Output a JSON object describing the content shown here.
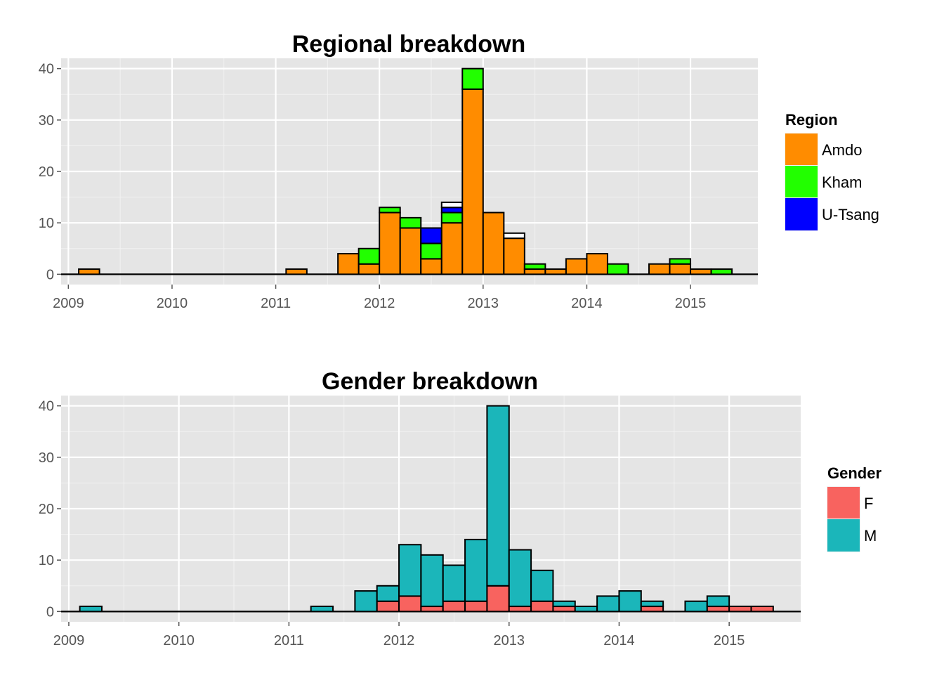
{
  "chart_data": [
    {
      "type": "bar",
      "stacked": true,
      "title": "Regional breakdown",
      "xlabel": "",
      "ylabel": "",
      "xlim": [
        2008.93,
        2015.65
      ],
      "ylim": [
        -2,
        42
      ],
      "x_ticks": [
        2009,
        2010,
        2011,
        2012,
        2013,
        2014,
        2015
      ],
      "y_ticks": [
        0,
        10,
        20,
        30,
        40
      ],
      "x_tick_labels": [
        "2009",
        "2010",
        "2011",
        "2012",
        "2013",
        "2014",
        "2015"
      ],
      "y_tick_labels": [
        "0",
        "10",
        "20",
        "30",
        "40"
      ],
      "grid": true,
      "legend": {
        "title": "Region",
        "position": "right",
        "items": [
          {
            "label": "Amdo",
            "color": "#FF8C00"
          },
          {
            "label": "Kham",
            "color": "#22FF00"
          },
          {
            "label": "U-Tsang",
            "color": "#0000FF"
          }
        ]
      },
      "bin_width": 0.2,
      "bins": [
        {
          "x": 2009.2,
          "segments": [
            {
              "series": "Amdo",
              "value": 1
            }
          ]
        },
        {
          "x": 2011.2,
          "segments": [
            {
              "series": "Amdo",
              "value": 1
            }
          ]
        },
        {
          "x": 2011.7,
          "segments": [
            {
              "series": "Amdo",
              "value": 4
            }
          ]
        },
        {
          "x": 2011.9,
          "segments": [
            {
              "series": "Amdo",
              "value": 2
            },
            {
              "series": "Kham",
              "value": 3
            }
          ]
        },
        {
          "x": 2012.1,
          "segments": [
            {
              "series": "Amdo",
              "value": 12
            },
            {
              "series": "Kham",
              "value": 1
            }
          ]
        },
        {
          "x": 2012.3,
          "segments": [
            {
              "series": "Amdo",
              "value": 9
            },
            {
              "series": "Kham",
              "value": 2
            }
          ]
        },
        {
          "x": 2012.5,
          "segments": [
            {
              "series": "Amdo",
              "value": 3
            },
            {
              "series": "Kham",
              "value": 3
            },
            {
              "series": "U-Tsang",
              "value": 3
            }
          ]
        },
        {
          "x": 2012.7,
          "segments": [
            {
              "series": "Amdo",
              "value": 10
            },
            {
              "series": "Kham",
              "value": 2
            },
            {
              "series": "U-Tsang",
              "value": 1
            },
            {
              "series": "NA",
              "value": 1
            }
          ]
        },
        {
          "x": 2012.9,
          "segments": [
            {
              "series": "Amdo",
              "value": 36
            },
            {
              "series": "Kham",
              "value": 4
            }
          ]
        },
        {
          "x": 2013.1,
          "segments": [
            {
              "series": "Amdo",
              "value": 12
            }
          ]
        },
        {
          "x": 2013.3,
          "segments": [
            {
              "series": "Amdo",
              "value": 7
            },
            {
              "series": "NA",
              "value": 1
            }
          ]
        },
        {
          "x": 2013.5,
          "segments": [
            {
              "series": "Amdo",
              "value": 1
            },
            {
              "series": "Kham",
              "value": 1
            }
          ]
        },
        {
          "x": 2013.7,
          "segments": [
            {
              "series": "Amdo",
              "value": 1
            }
          ]
        },
        {
          "x": 2013.9,
          "segments": [
            {
              "series": "Amdo",
              "value": 3
            }
          ]
        },
        {
          "x": 2014.1,
          "segments": [
            {
              "series": "Amdo",
              "value": 4
            }
          ]
        },
        {
          "x": 2014.3,
          "segments": [
            {
              "series": "Kham",
              "value": 2
            }
          ]
        },
        {
          "x": 2014.7,
          "segments": [
            {
              "series": "Amdo",
              "value": 2
            }
          ]
        },
        {
          "x": 2014.9,
          "segments": [
            {
              "series": "Amdo",
              "value": 2
            },
            {
              "series": "Kham",
              "value": 1
            }
          ]
        },
        {
          "x": 2015.1,
          "segments": [
            {
              "series": "Amdo",
              "value": 1
            }
          ]
        },
        {
          "x": 2015.3,
          "segments": [
            {
              "series": "Kham",
              "value": 1
            }
          ]
        }
      ]
    },
    {
      "type": "bar",
      "stacked": true,
      "title": "Gender breakdown",
      "xlabel": "",
      "ylabel": "",
      "xlim": [
        2008.93,
        2015.65
      ],
      "ylim": [
        -2,
        42
      ],
      "x_ticks": [
        2009,
        2010,
        2011,
        2012,
        2013,
        2014,
        2015
      ],
      "y_ticks": [
        0,
        10,
        20,
        30,
        40
      ],
      "x_tick_labels": [
        "2009",
        "2010",
        "2011",
        "2012",
        "2013",
        "2014",
        "2015"
      ],
      "y_tick_labels": [
        "0",
        "10",
        "20",
        "30",
        "40"
      ],
      "grid": true,
      "legend": {
        "title": "Gender",
        "position": "right",
        "items": [
          {
            "label": "F",
            "color": "#F8635F"
          },
          {
            "label": "M",
            "color": "#1BB6BA"
          }
        ]
      },
      "bin_width": 0.2,
      "bins": [
        {
          "x": 2009.2,
          "segments": [
            {
              "series": "M",
              "value": 1
            }
          ]
        },
        {
          "x": 2011.3,
          "segments": [
            {
              "series": "M",
              "value": 1
            }
          ]
        },
        {
          "x": 2011.7,
          "segments": [
            {
              "series": "M",
              "value": 4
            }
          ]
        },
        {
          "x": 2011.9,
          "segments": [
            {
              "series": "F",
              "value": 2
            },
            {
              "series": "M",
              "value": 3
            }
          ]
        },
        {
          "x": 2012.1,
          "segments": [
            {
              "series": "F",
              "value": 3
            },
            {
              "series": "M",
              "value": 10
            }
          ]
        },
        {
          "x": 2012.3,
          "segments": [
            {
              "series": "F",
              "value": 1
            },
            {
              "series": "M",
              "value": 10
            }
          ]
        },
        {
          "x": 2012.5,
          "segments": [
            {
              "series": "F",
              "value": 2
            },
            {
              "series": "M",
              "value": 7
            }
          ]
        },
        {
          "x": 2012.7,
          "segments": [
            {
              "series": "F",
              "value": 2
            },
            {
              "series": "M",
              "value": 12
            }
          ]
        },
        {
          "x": 2012.9,
          "segments": [
            {
              "series": "F",
              "value": 5
            },
            {
              "series": "M",
              "value": 35
            }
          ]
        },
        {
          "x": 2013.1,
          "segments": [
            {
              "series": "F",
              "value": 1
            },
            {
              "series": "M",
              "value": 11
            }
          ]
        },
        {
          "x": 2013.3,
          "segments": [
            {
              "series": "F",
              "value": 2
            },
            {
              "series": "M",
              "value": 6
            }
          ]
        },
        {
          "x": 2013.5,
          "segments": [
            {
              "series": "F",
              "value": 1
            },
            {
              "series": "M",
              "value": 1
            }
          ]
        },
        {
          "x": 2013.7,
          "segments": [
            {
              "series": "M",
              "value": 1
            }
          ]
        },
        {
          "x": 2013.9,
          "segments": [
            {
              "series": "M",
              "value": 3
            }
          ]
        },
        {
          "x": 2014.1,
          "segments": [
            {
              "series": "M",
              "value": 4
            }
          ]
        },
        {
          "x": 2014.3,
          "segments": [
            {
              "series": "F",
              "value": 1
            },
            {
              "series": "M",
              "value": 1
            }
          ]
        },
        {
          "x": 2014.7,
          "segments": [
            {
              "series": "M",
              "value": 2
            }
          ]
        },
        {
          "x": 2014.9,
          "segments": [
            {
              "series": "F",
              "value": 1
            },
            {
              "series": "M",
              "value": 2
            }
          ]
        },
        {
          "x": 2015.1,
          "segments": [
            {
              "series": "F",
              "value": 1
            }
          ]
        },
        {
          "x": 2015.3,
          "segments": [
            {
              "series": "F",
              "value": 1
            }
          ]
        }
      ]
    }
  ]
}
